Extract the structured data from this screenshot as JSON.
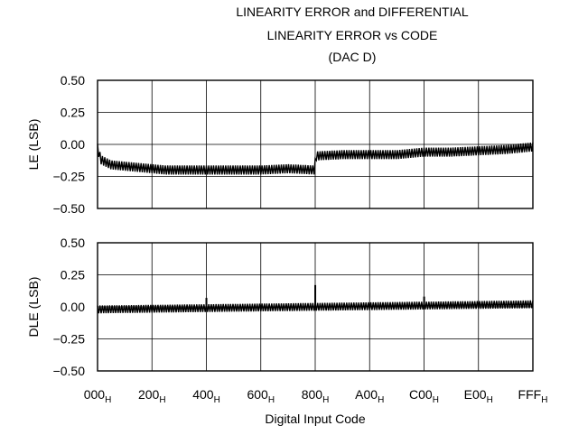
{
  "title_lines": [
    "LINEARITY ERROR and DIFFERENTIAL",
    "LINEARITY ERROR vs CODE",
    "(DAC D)"
  ],
  "chart_data": [
    {
      "type": "line",
      "ylabel": "LE (LSB)",
      "ylim": [
        -0.5,
        0.5
      ],
      "yticks": [
        "0.50",
        "0.25",
        "0.00",
        "−0.25",
        "−0.50"
      ],
      "xlim": [
        0,
        4095
      ],
      "grid": true,
      "series": [
        {
          "x": [
            0,
            32,
            128,
            256,
            384,
            512,
            640,
            768,
            800,
            1024,
            1280,
            1536,
            1792,
            2047,
            2048,
            2304,
            2560,
            2816,
            3072,
            3328,
            3584,
            3840,
            4095
          ],
          "values": [
            -0.03,
            -0.12,
            -0.16,
            -0.17,
            -0.18,
            -0.19,
            -0.2,
            -0.2,
            -0.2,
            -0.2,
            -0.2,
            -0.2,
            -0.19,
            -0.2,
            -0.09,
            -0.08,
            -0.08,
            -0.08,
            -0.06,
            -0.06,
            -0.05,
            -0.04,
            -0.02
          ],
          "ripple": 0.035
        }
      ]
    },
    {
      "type": "line",
      "ylabel": "DLE (LSB)",
      "ylim": [
        -0.5,
        0.5
      ],
      "yticks": [
        "0.50",
        "0.25",
        "0.00",
        "−0.25",
        "−0.50"
      ],
      "xlim": [
        0,
        4095
      ],
      "xlabel": "Digital Input Code",
      "xticks": [
        {
          "main": "000",
          "sub": "H"
        },
        {
          "main": "200",
          "sub": "H"
        },
        {
          "main": "400",
          "sub": "H"
        },
        {
          "main": "600",
          "sub": "H"
        },
        {
          "main": "800",
          "sub": "H"
        },
        {
          "main": "A00",
          "sub": "H"
        },
        {
          "main": "C00",
          "sub": "H"
        },
        {
          "main": "E00",
          "sub": "H"
        },
        {
          "main": "FFF",
          "sub": "H"
        }
      ],
      "grid": true,
      "series": [
        {
          "x": [
            0,
            1024,
            2048,
            3072,
            4095
          ],
          "values": [
            -0.02,
            -0.01,
            0.0,
            0.01,
            0.02
          ],
          "ripple": 0.03,
          "spikes": [
            {
              "x": 1024,
              "value": 0.07
            },
            {
              "x": 2048,
              "value": 0.17
            },
            {
              "x": 3072,
              "value": 0.08
            }
          ]
        }
      ]
    }
  ]
}
